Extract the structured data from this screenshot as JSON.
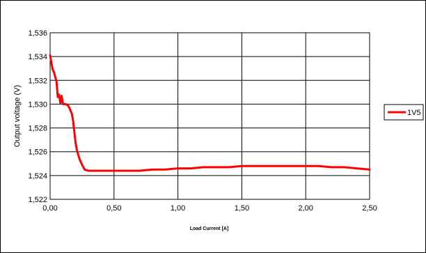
{
  "chart_data": {
    "type": "line",
    "title": "",
    "xlabel": "Load Current [A]",
    "ylabel": "Output voltage (V)",
    "xlim": [
      0,
      2.5
    ],
    "ylim": [
      1.522,
      1.536
    ],
    "x_ticks": [
      0,
      0.5,
      1.0,
      1.5,
      2.0,
      2.5
    ],
    "x_tick_labels": [
      "0,00",
      "0,50",
      "1,00",
      "1,50",
      "2,00",
      "2,50"
    ],
    "y_ticks": [
      1.522,
      1.524,
      1.526,
      1.528,
      1.53,
      1.532,
      1.534,
      1.536
    ],
    "y_tick_labels": [
      "1,522",
      "1,524",
      "1,526",
      "1,528",
      "1,530",
      "1,532",
      "1,534",
      "1,536"
    ],
    "grid": true,
    "legend_position": "right",
    "series": [
      {
        "name": "1V5",
        "color": "#ff0000",
        "x": [
          0.0,
          0.01,
          0.02,
          0.03,
          0.04,
          0.05,
          0.06,
          0.07,
          0.08,
          0.09,
          0.1,
          0.12,
          0.14,
          0.15,
          0.17,
          0.18,
          0.19,
          0.2,
          0.21,
          0.23,
          0.25,
          0.27,
          0.3,
          0.4,
          0.5,
          0.6,
          0.7,
          0.8,
          0.9,
          1.0,
          1.1,
          1.2,
          1.3,
          1.4,
          1.5,
          1.6,
          1.7,
          1.8,
          1.9,
          2.0,
          2.1,
          2.2,
          2.3,
          2.4,
          2.5
        ],
        "values": [
          1.5341,
          1.5335,
          1.5329,
          1.5327,
          1.5323,
          1.5319,
          1.5306,
          1.5308,
          1.5301,
          1.5307,
          1.53,
          1.53,
          1.5299,
          1.5297,
          1.5292,
          1.5286,
          1.5276,
          1.5267,
          1.5261,
          1.5254,
          1.5249,
          1.5245,
          1.5244,
          1.5244,
          1.5244,
          1.5244,
          1.5244,
          1.5245,
          1.5245,
          1.5246,
          1.5246,
          1.5247,
          1.5247,
          1.5247,
          1.5248,
          1.5248,
          1.5248,
          1.5248,
          1.5248,
          1.5248,
          1.5248,
          1.5247,
          1.5247,
          1.5246,
          1.5245
        ]
      }
    ]
  }
}
